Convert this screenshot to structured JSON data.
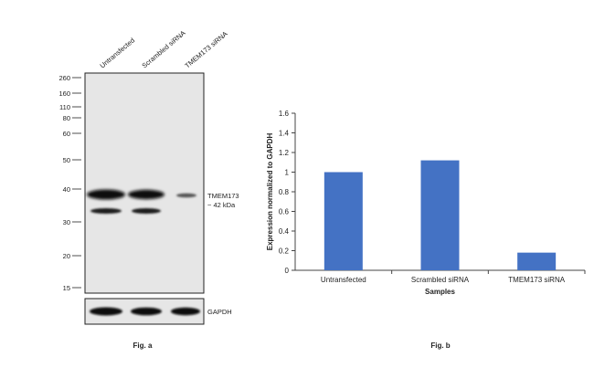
{
  "figure_a": {
    "caption": "Fig. a",
    "lanes": [
      "Untransfected",
      "Scrambled siRNA",
      "TMEM173 siRNA"
    ],
    "mw_markers": [
      "260",
      "160",
      "110",
      "80",
      "60",
      "50",
      "40",
      "30",
      "20",
      "15"
    ],
    "band_label_line1": "TMEM173",
    "band_label_line2": "~ 42 kDa",
    "loading_control_label": "GAPDH"
  },
  "figure_b": {
    "caption": "Fig. b"
  },
  "chart_data": {
    "type": "bar",
    "categories": [
      "Untransfected",
      "Scrambled siRNA",
      "TMEM173 siRNA"
    ],
    "values": [
      1.0,
      1.12,
      0.18
    ],
    "title": "",
    "xlabel": "Samples",
    "ylabel": "Expression normalized to GAPDH",
    "ylim": [
      0,
      1.6
    ],
    "yticks": [
      "0",
      "0.2",
      "0.4",
      "0.6",
      "0.8",
      "1",
      "1.2",
      "1.4",
      "1.6"
    ],
    "bar_color": "#4472c4",
    "grid": false,
    "legend": "none"
  }
}
